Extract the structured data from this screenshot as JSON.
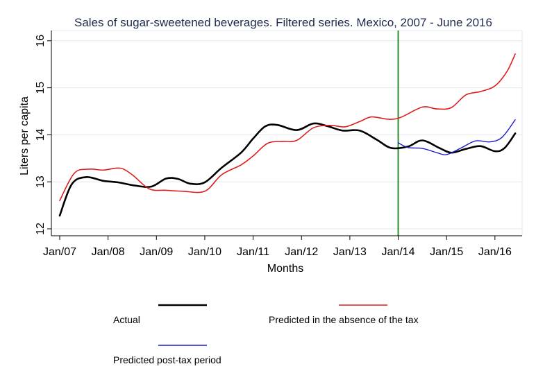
{
  "chart_data": {
    "type": "line",
    "title": "Sales of sugar-sweetened beverages. Filtered series. Mexico, 2007 - June 2016",
    "xlabel": "Months",
    "ylabel": "Liters per capita",
    "xlim": [
      2007.0,
      2016.5
    ],
    "ylim": [
      12,
      16
    ],
    "x_ticks": [
      {
        "x": 2007,
        "label": "Jan/07"
      },
      {
        "x": 2008,
        "label": "Jan/08"
      },
      {
        "x": 2009,
        "label": "Jan/09"
      },
      {
        "x": 2010,
        "label": "Jan/10"
      },
      {
        "x": 2011,
        "label": "Jan/11"
      },
      {
        "x": 2012,
        "label": "Jan/12"
      },
      {
        "x": 2013,
        "label": "Jan/13"
      },
      {
        "x": 2014,
        "label": "Jan/14"
      },
      {
        "x": 2015,
        "label": "Jan/15"
      },
      {
        "x": 2016,
        "label": "Jan/16"
      }
    ],
    "y_ticks": [
      12,
      13,
      14,
      15,
      16
    ],
    "grid": true,
    "vertical_line": {
      "x": 2014.0,
      "color": "#2e8b2e"
    },
    "legend_position": "bottom",
    "series": [
      {
        "name": "Actual",
        "color": "#000000",
        "points": [
          [
            2007.0,
            12.28
          ],
          [
            2007.25,
            12.95
          ],
          [
            2007.55,
            13.1
          ],
          [
            2007.9,
            13.02
          ],
          [
            2008.2,
            12.99
          ],
          [
            2008.55,
            12.92
          ],
          [
            2008.9,
            12.9
          ],
          [
            2009.2,
            13.07
          ],
          [
            2009.45,
            13.06
          ],
          [
            2009.7,
            12.96
          ],
          [
            2010.0,
            12.99
          ],
          [
            2010.35,
            13.3
          ],
          [
            2010.75,
            13.62
          ],
          [
            2011.0,
            13.92
          ],
          [
            2011.25,
            14.18
          ],
          [
            2011.5,
            14.21
          ],
          [
            2011.9,
            14.1
          ],
          [
            2012.25,
            14.24
          ],
          [
            2012.55,
            14.18
          ],
          [
            2012.85,
            14.09
          ],
          [
            2013.2,
            14.09
          ],
          [
            2013.55,
            13.9
          ],
          [
            2013.85,
            13.72
          ],
          [
            2014.2,
            13.75
          ],
          [
            2014.5,
            13.88
          ],
          [
            2014.85,
            13.72
          ],
          [
            2015.1,
            13.62
          ],
          [
            2015.4,
            13.7
          ],
          [
            2015.7,
            13.76
          ],
          [
            2016.0,
            13.65
          ],
          [
            2016.2,
            13.72
          ],
          [
            2016.42,
            14.03
          ]
        ]
      },
      {
        "name": "Predicted in the absence of the tax",
        "color": "#dd1c1c",
        "points": [
          [
            2007.0,
            12.6
          ],
          [
            2007.3,
            13.18
          ],
          [
            2007.6,
            13.27
          ],
          [
            2007.9,
            13.25
          ],
          [
            2008.25,
            13.29
          ],
          [
            2008.5,
            13.15
          ],
          [
            2008.85,
            12.85
          ],
          [
            2009.2,
            12.82
          ],
          [
            2009.55,
            12.8
          ],
          [
            2010.0,
            12.8
          ],
          [
            2010.35,
            13.15
          ],
          [
            2010.75,
            13.36
          ],
          [
            2011.0,
            13.55
          ],
          [
            2011.3,
            13.82
          ],
          [
            2011.6,
            13.86
          ],
          [
            2011.9,
            13.88
          ],
          [
            2012.25,
            14.15
          ],
          [
            2012.6,
            14.2
          ],
          [
            2012.9,
            14.17
          ],
          [
            2013.2,
            14.28
          ],
          [
            2013.45,
            14.38
          ],
          [
            2013.8,
            14.33
          ],
          [
            2014.05,
            14.37
          ],
          [
            2014.5,
            14.59
          ],
          [
            2014.8,
            14.55
          ],
          [
            2015.1,
            14.58
          ],
          [
            2015.4,
            14.85
          ],
          [
            2015.7,
            14.92
          ],
          [
            2016.0,
            15.04
          ],
          [
            2016.25,
            15.35
          ],
          [
            2016.42,
            15.72
          ]
        ]
      },
      {
        "name": "Predicted post-tax period",
        "color": "#1a1ac8",
        "points": [
          [
            2014.0,
            13.83
          ],
          [
            2014.2,
            13.73
          ],
          [
            2014.5,
            13.71
          ],
          [
            2014.8,
            13.62
          ],
          [
            2015.0,
            13.58
          ],
          [
            2015.3,
            13.72
          ],
          [
            2015.6,
            13.87
          ],
          [
            2015.9,
            13.85
          ],
          [
            2016.15,
            13.95
          ],
          [
            2016.42,
            14.32
          ]
        ]
      }
    ]
  }
}
